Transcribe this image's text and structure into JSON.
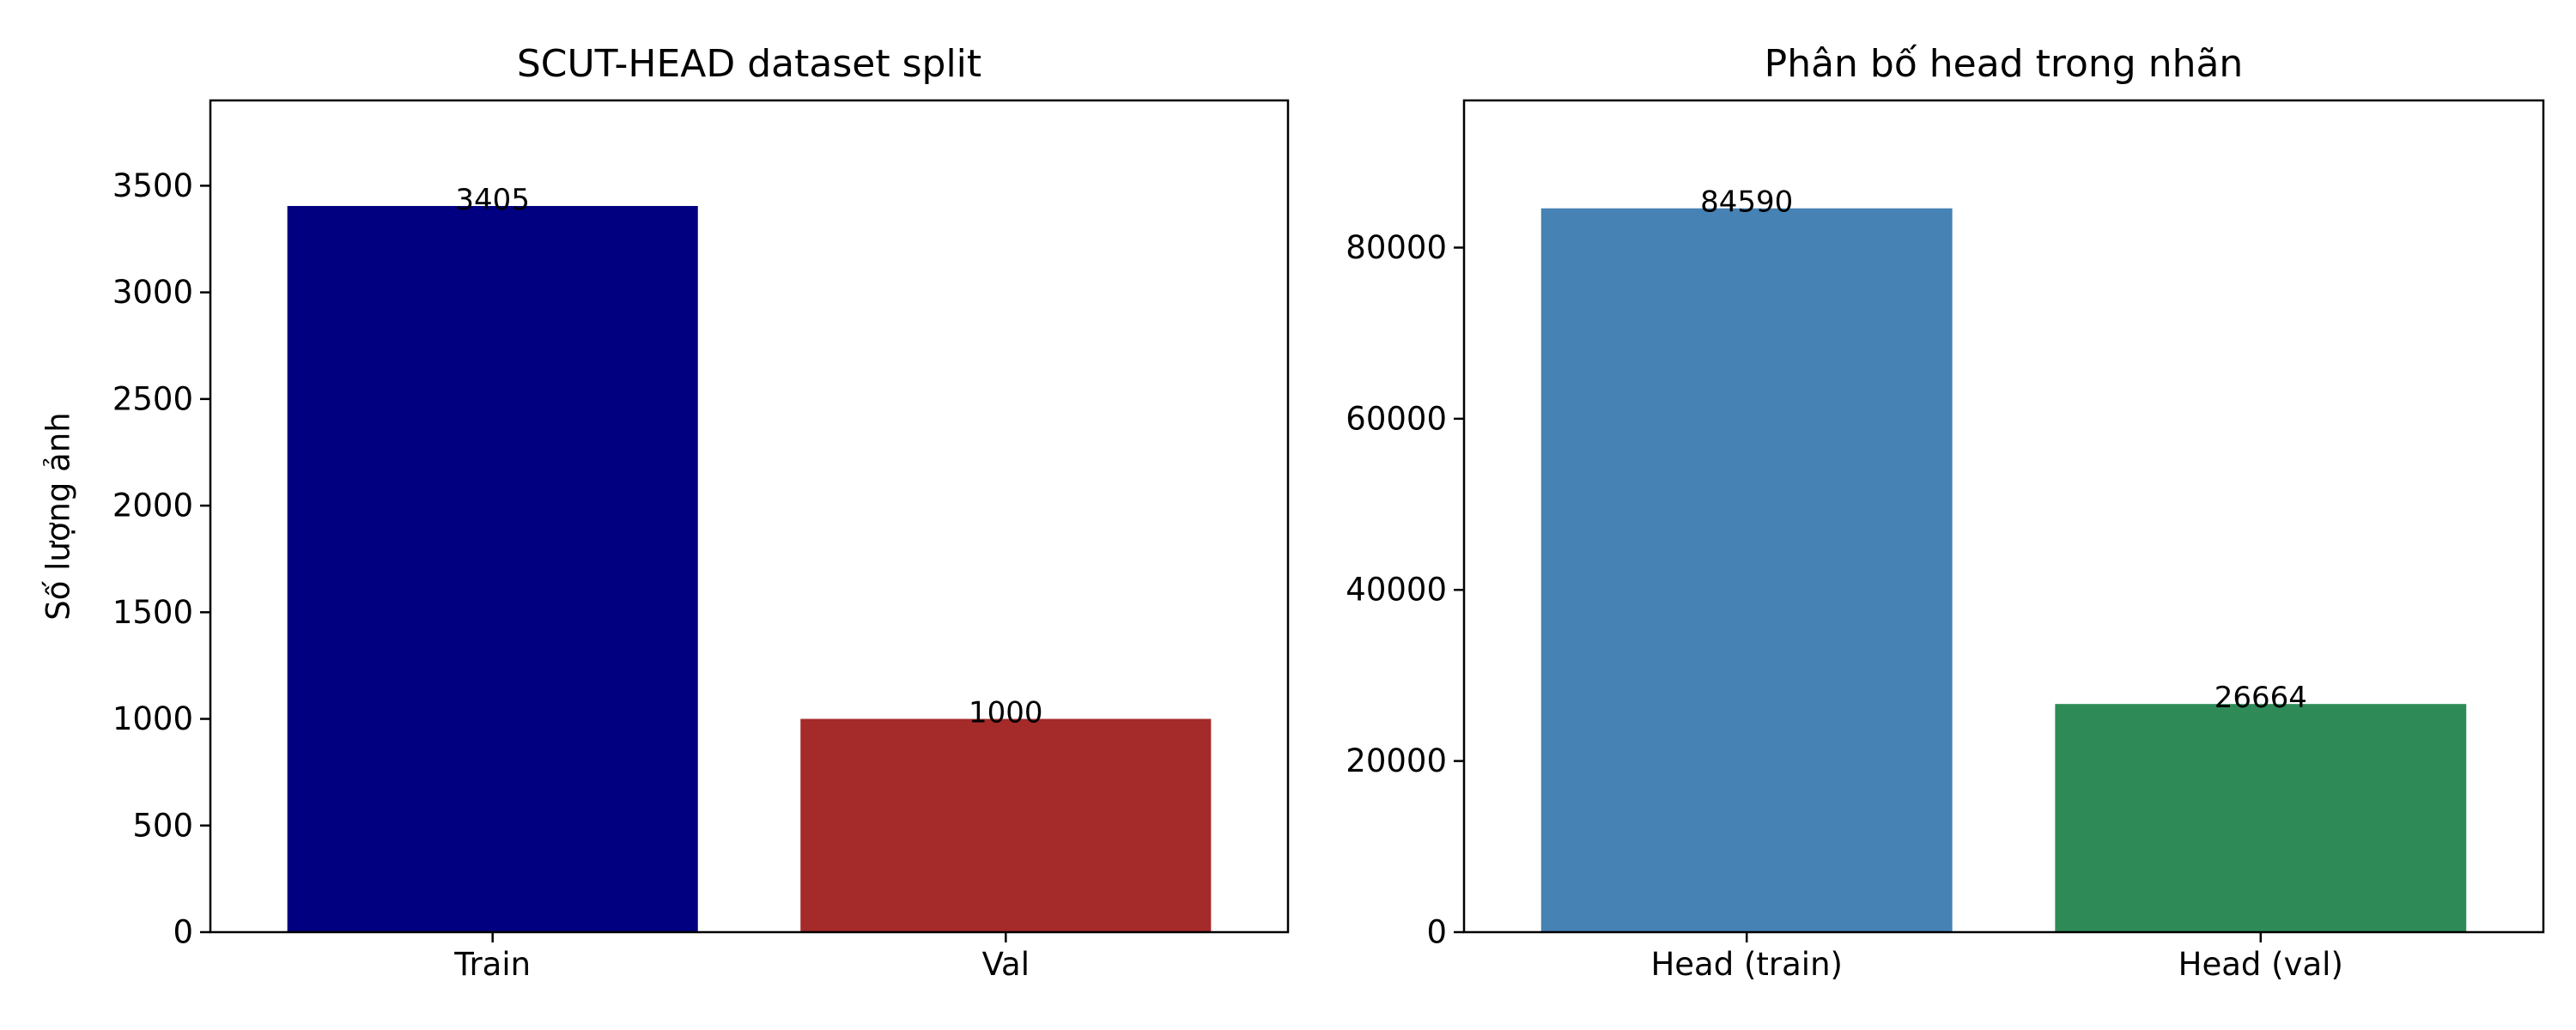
{
  "chart_data": [
    {
      "type": "bar",
      "title": "SCUT-HEAD dataset split",
      "xlabel": "",
      "ylabel": "Số lượng ảnh",
      "categories": [
        "Train",
        "Val"
      ],
      "values": [
        3405,
        1000
      ],
      "data_labels": [
        "3405",
        "1000"
      ],
      "colors": [
        "#000080",
        "#a52a2a"
      ],
      "ylim": [
        0,
        3900
      ],
      "yticks": [
        0,
        500,
        1000,
        1500,
        2000,
        2500,
        3000,
        3500
      ],
      "grid": false,
      "legend": "none"
    },
    {
      "type": "bar",
      "title": "Phân bố head trong nhãn",
      "xlabel": "",
      "ylabel": "",
      "categories": [
        "Head (train)",
        "Head (val)"
      ],
      "values": [
        84590,
        26664
      ],
      "data_labels": [
        "84590",
        "26664"
      ],
      "colors": [
        "#4682b4",
        "#2e8b57"
      ],
      "ylim": [
        0,
        97200
      ],
      "yticks": [
        0,
        20000,
        40000,
        60000,
        80000
      ],
      "grid": false,
      "legend": "none"
    }
  ]
}
